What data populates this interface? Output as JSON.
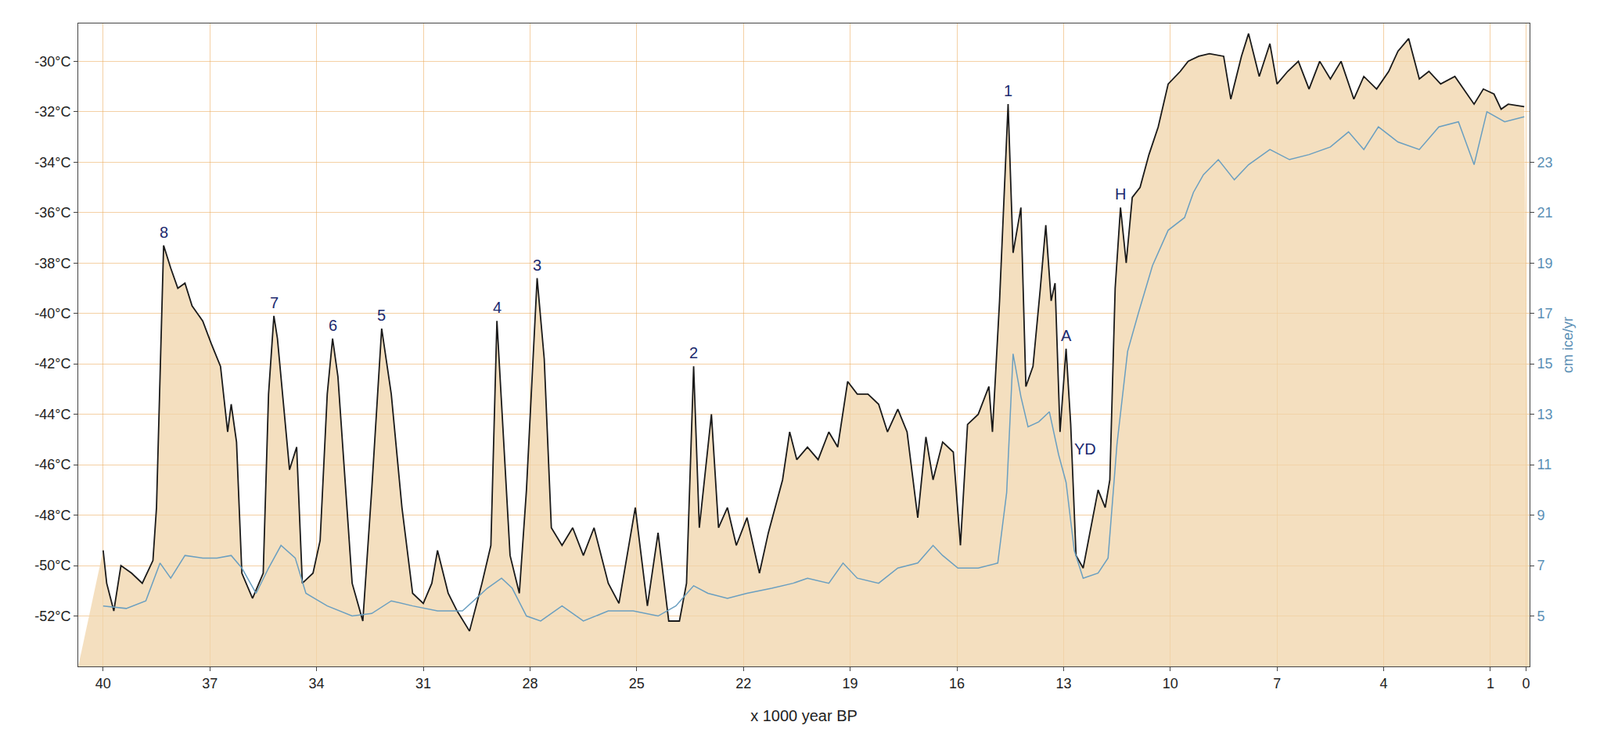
{
  "chart_data": {
    "type": "line",
    "xlabel": "x 1000 year BP",
    "y2label": "cm ice/yr",
    "xlim": [
      40.7,
      -0.1
    ],
    "xticks": [
      40,
      37,
      34,
      31,
      28,
      25,
      22,
      19,
      16,
      13,
      10,
      7,
      4,
      1,
      0
    ],
    "ylim": [
      -54,
      -28.5
    ],
    "yticks": [
      {
        "value": -30,
        "label": "-30°C"
      },
      {
        "value": -32,
        "label": "-32°C"
      },
      {
        "value": -34,
        "label": "-34°C"
      },
      {
        "value": -36,
        "label": "-36°C"
      },
      {
        "value": -38,
        "label": "-38°C"
      },
      {
        "value": -40,
        "label": "-40°C"
      },
      {
        "value": -42,
        "label": "-42°C"
      },
      {
        "value": -44,
        "label": "-44°C"
      },
      {
        "value": -46,
        "label": "-46°C"
      },
      {
        "value": -48,
        "label": "-48°C"
      },
      {
        "value": -50,
        "label": "-50°C"
      },
      {
        "value": -52,
        "label": "-52°C"
      }
    ],
    "y2lim": [
      3,
      28.5
    ],
    "y2ticks": [
      5,
      7,
      9,
      11,
      13,
      15,
      17,
      19,
      21,
      23
    ],
    "grid": true,
    "series": [
      {
        "color": "#1a1a1a",
        "axis": "y",
        "x": [
          40.0,
          39.9,
          39.7,
          39.5,
          39.2,
          38.9,
          38.6,
          38.5,
          38.3,
          38.1,
          37.9,
          37.7,
          37.5,
          37.2,
          36.96,
          36.7,
          36.5,
          36.4,
          36.25,
          36.1,
          35.8,
          35.5,
          35.35,
          35.2,
          35.1,
          34.9,
          34.76,
          34.56,
          34.4,
          34.1,
          33.9,
          33.7,
          33.55,
          33.4,
          33.2,
          33.0,
          32.7,
          32.45,
          32.17,
          31.9,
          31.6,
          31.3,
          31.0,
          30.76,
          30.6,
          30.3,
          30.05,
          29.7,
          29.35,
          29.1,
          28.93,
          28.76,
          28.56,
          28.3,
          28.1,
          27.8,
          27.6,
          27.4,
          27.1,
          26.8,
          26.5,
          26.2,
          25.8,
          25.5,
          25.04,
          24.7,
          24.4,
          24.1,
          23.8,
          23.6,
          23.4,
          23.24,
          22.9,
          22.7,
          22.45,
          22.2,
          21.9,
          21.55,
          21.3,
          20.9,
          20.7,
          20.5,
          20.2,
          19.9,
          19.6,
          19.35,
          19.07,
          18.8,
          18.5,
          18.2,
          17.95,
          17.66,
          17.4,
          17.1,
          16.87,
          16.67,
          16.4,
          16.1,
          15.9,
          15.7,
          15.4,
          15.1,
          15.0,
          14.8,
          14.56,
          14.42,
          14.2,
          14.06,
          13.86,
          13.66,
          13.5,
          13.35,
          13.24,
          13.1,
          12.93,
          12.8,
          12.65,
          12.45,
          12.23,
          12.03,
          11.83,
          11.7,
          11.55,
          11.4,
          11.24,
          11.07,
          10.85,
          10.6,
          10.34,
          10.06,
          9.72,
          9.5,
          9.2,
          8.9,
          8.5,
          8.3,
          8.0,
          7.8,
          7.5,
          7.2,
          7.0,
          6.7,
          6.4,
          6.1,
          5.8,
          5.5,
          5.2,
          4.84,
          4.56,
          4.2,
          3.86,
          3.6,
          3.3,
          3.0,
          2.73,
          2.4,
          2.0,
          1.75,
          1.46,
          1.2,
          0.9,
          0.7,
          0.5,
          0.05
        ],
        "values": [
          -49.4,
          -50.7,
          -51.8,
          -50.0,
          -50.3,
          -50.7,
          -49.8,
          -47.7,
          -37.3,
          -38.2,
          -39.0,
          -38.8,
          -39.7,
          -40.3,
          -41.2,
          -42.1,
          -44.7,
          -43.6,
          -45.1,
          -50.3,
          -51.3,
          -50.3,
          -43.2,
          -40.1,
          -41.0,
          -44.0,
          -46.2,
          -45.3,
          -50.7,
          -50.3,
          -49.0,
          -43.2,
          -41.0,
          -42.5,
          -46.6,
          -50.7,
          -52.2,
          -47.0,
          -40.6,
          -43.2,
          -47.7,
          -51.1,
          -51.5,
          -50.7,
          -49.4,
          -51.1,
          -51.8,
          -52.6,
          -50.7,
          -49.2,
          -40.3,
          -44.4,
          -49.6,
          -51.1,
          -47.0,
          -38.6,
          -41.8,
          -48.5,
          -49.2,
          -48.5,
          -49.6,
          -48.5,
          -50.7,
          -51.5,
          -47.7,
          -51.6,
          -48.7,
          -52.2,
          -52.2,
          -50.7,
          -42.1,
          -48.5,
          -44.0,
          -48.5,
          -47.7,
          -49.2,
          -48.1,
          -50.3,
          -48.7,
          -46.6,
          -44.7,
          -45.8,
          -45.3,
          -45.8,
          -44.7,
          -45.3,
          -42.7,
          -43.2,
          -43.2,
          -43.6,
          -44.7,
          -43.8,
          -44.7,
          -48.1,
          -44.9,
          -46.6,
          -45.1,
          -45.5,
          -49.2,
          -44.4,
          -44.0,
          -42.9,
          -44.7,
          -39.5,
          -31.7,
          -37.6,
          -35.8,
          -42.9,
          -42.1,
          -39.1,
          -36.5,
          -39.5,
          -38.8,
          -44.7,
          -41.4,
          -44.4,
          -49.6,
          -50.1,
          -48.5,
          -47.0,
          -47.7,
          -46.6,
          -39.0,
          -35.8,
          -38.0,
          -35.4,
          -35.0,
          -33.7,
          -32.6,
          -30.9,
          -30.4,
          -30.0,
          -29.8,
          -29.7,
          -29.8,
          -31.5,
          -29.8,
          -28.9,
          -30.6,
          -29.3,
          -30.9,
          -30.4,
          -30.0,
          -31.1,
          -30.0,
          -30.7,
          -30.0,
          -31.5,
          -30.6,
          -31.1,
          -30.4,
          -29.6,
          -29.1,
          -30.7,
          -30.4,
          -30.9,
          -30.6,
          -31.1,
          -31.7,
          -31.1,
          -31.3,
          -31.9,
          -31.7,
          -31.8
        ]
      },
      {
        "color": "#6a9fc0",
        "axis": "y2",
        "x": [
          40.0,
          39.35,
          38.8,
          38.4,
          38.1,
          37.7,
          37.2,
          36.8,
          36.4,
          36.1,
          35.7,
          35.35,
          35.0,
          34.6,
          34.3,
          33.7,
          33.0,
          32.45,
          31.9,
          31.3,
          30.6,
          29.9,
          29.2,
          28.8,
          28.5,
          28.1,
          27.7,
          27.1,
          26.5,
          25.8,
          25.1,
          24.4,
          23.9,
          23.4,
          23.0,
          22.45,
          21.9,
          21.2,
          20.6,
          20.2,
          19.6,
          19.2,
          18.8,
          18.2,
          17.66,
          17.1,
          16.67,
          16.4,
          15.97,
          15.4,
          14.85,
          14.6,
          14.42,
          14.2,
          14.0,
          13.7,
          13.4,
          13.14,
          12.93,
          12.7,
          12.45,
          12.03,
          11.75,
          11.5,
          11.2,
          10.9,
          10.5,
          10.06,
          9.6,
          9.35,
          9.07,
          8.65,
          8.2,
          7.8,
          7.2,
          6.65,
          6.1,
          5.5,
          4.99,
          4.56,
          4.15,
          3.6,
          3.0,
          2.45,
          1.9,
          1.46,
          1.1,
          0.6,
          0.05
        ],
        "values": [
          5.4,
          5.3,
          5.6,
          7.1,
          6.5,
          7.4,
          7.3,
          7.3,
          7.4,
          6.9,
          5.9,
          6.9,
          7.8,
          7.3,
          5.9,
          5.4,
          5.0,
          5.1,
          5.6,
          5.4,
          5.2,
          5.2,
          6.1,
          6.5,
          6.1,
          5.0,
          4.8,
          5.4,
          4.8,
          5.2,
          5.2,
          5.0,
          5.4,
          6.2,
          5.9,
          5.7,
          5.9,
          6.1,
          6.3,
          6.5,
          6.3,
          7.1,
          6.5,
          6.3,
          6.9,
          7.1,
          7.8,
          7.4,
          6.9,
          6.9,
          7.1,
          9.9,
          15.4,
          13.7,
          12.5,
          12.7,
          13.1,
          11.4,
          10.3,
          7.6,
          6.5,
          6.7,
          7.3,
          11.8,
          15.5,
          17.0,
          18.9,
          20.3,
          20.8,
          21.8,
          22.5,
          23.1,
          22.3,
          22.9,
          23.5,
          23.1,
          23.3,
          23.6,
          24.2,
          23.5,
          24.4,
          23.8,
          23.5,
          24.4,
          24.6,
          22.9,
          25.0,
          24.6,
          24.8
        ]
      }
    ],
    "annotations": [
      {
        "text": "8",
        "x": 38.3,
        "y": -37.3
      },
      {
        "text": "7",
        "x": 35.2,
        "y": -40.1
      },
      {
        "text": "6",
        "x": 33.55,
        "y": -41.0
      },
      {
        "text": "5",
        "x": 32.17,
        "y": -40.6
      },
      {
        "text": "4",
        "x": 28.93,
        "y": -40.3
      },
      {
        "text": "3",
        "x": 27.8,
        "y": -38.6
      },
      {
        "text": "2",
        "x": 23.4,
        "y": -42.1
      },
      {
        "text": "1",
        "x": 14.56,
        "y": -31.7
      },
      {
        "text": "A",
        "x": 12.93,
        "y": -41.4
      },
      {
        "text": "YD",
        "x": 12.4,
        "y": -45.9
      },
      {
        "text": "H",
        "x": 11.4,
        "y": -35.8
      }
    ]
  }
}
